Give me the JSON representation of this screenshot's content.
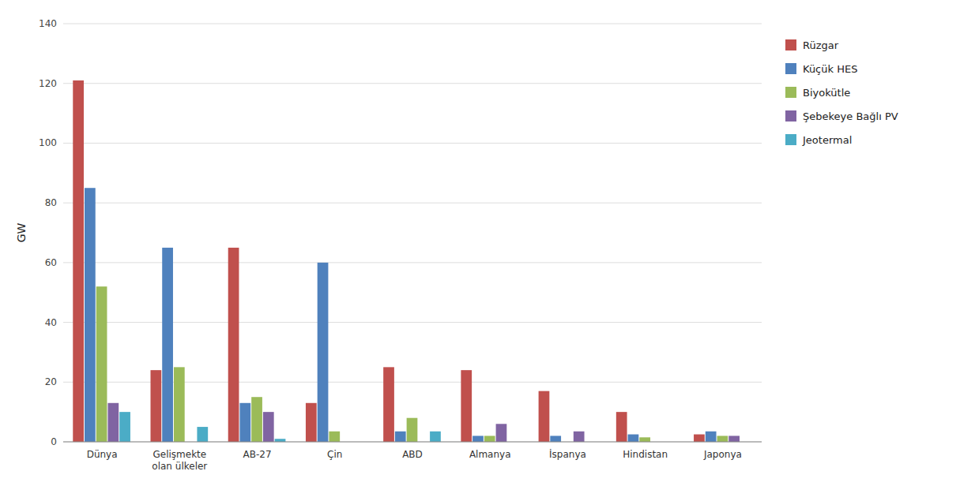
{
  "chart_data": {
    "type": "bar",
    "categories": [
      "Dünya",
      "Gelişmekte\nolan ülkeler",
      "AB-27",
      "Çin",
      "ABD",
      "Almanya",
      "İspanya",
      "Hindistan",
      "Japonya"
    ],
    "series": [
      {
        "name": "Rüzgar",
        "color": "#C0504D",
        "values": [
          121,
          24,
          65,
          13,
          25,
          24,
          17,
          10,
          2.5
        ]
      },
      {
        "name": "Küçük HES",
        "color": "#4F81BD",
        "values": [
          85,
          65,
          13,
          60,
          3.5,
          2,
          2,
          2.5,
          3.5
        ]
      },
      {
        "name": "Biyokütle",
        "color": "#9BBB59",
        "values": [
          52,
          25,
          15,
          3.5,
          8,
          2,
          0,
          1.5,
          2
        ]
      },
      {
        "name": "Şebekeye Bağlı PV",
        "color": "#8064A2",
        "values": [
          13,
          0,
          10,
          0,
          0,
          6,
          3.5,
          0,
          2
        ]
      },
      {
        "name": "Jeotermal",
        "color": "#4BACC6",
        "values": [
          10,
          5,
          1,
          0,
          3.5,
          0,
          0,
          0,
          0
        ]
      }
    ],
    "ylabel": "GW",
    "ylim": [
      0,
      140
    ],
    "yticks": [
      0,
      20,
      40,
      60,
      80,
      100,
      120,
      140
    ],
    "grid": true,
    "legend": "right"
  }
}
